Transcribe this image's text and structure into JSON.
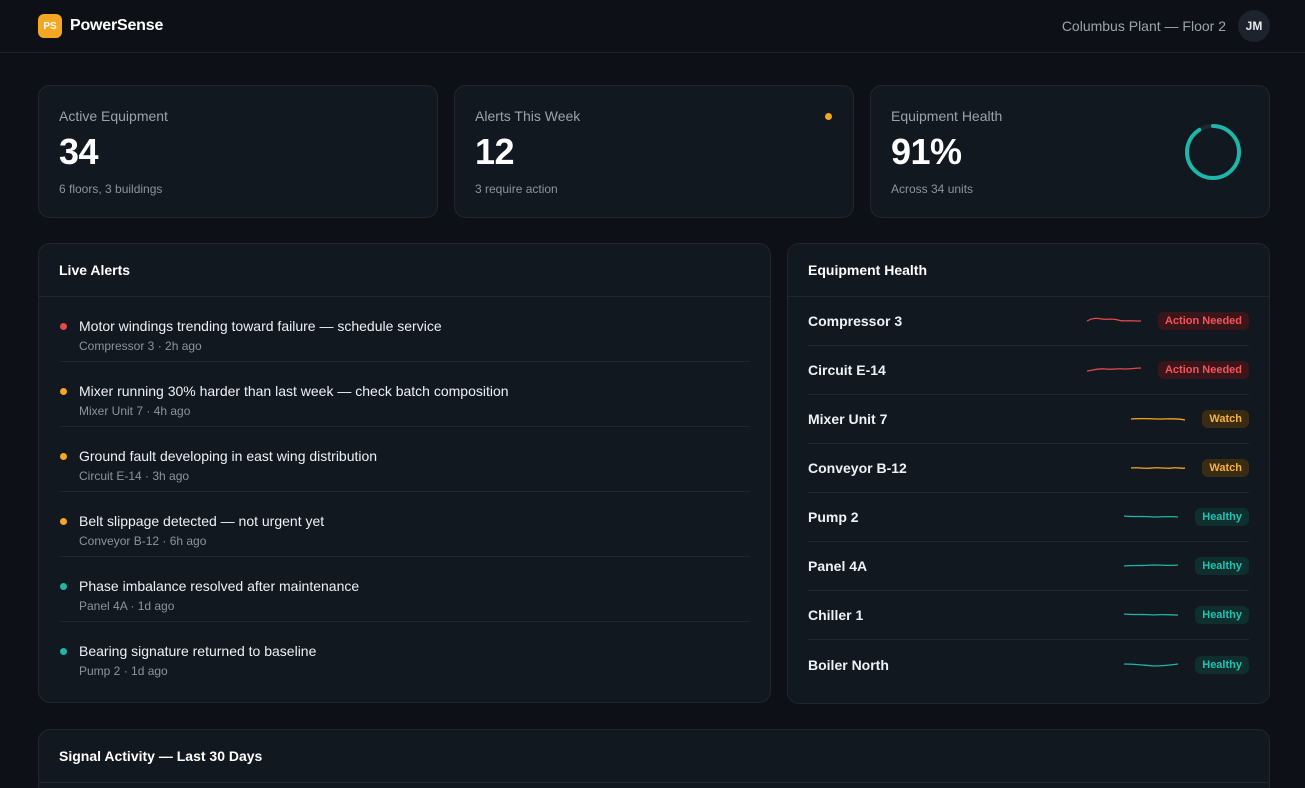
{
  "brand": {
    "logo_text": "PS",
    "name": "PowerSense"
  },
  "header": {
    "location": "Columbus Plant — Floor 2",
    "avatar_initials": "JM"
  },
  "kpis": [
    {
      "label": "Active Equipment",
      "value": "34",
      "sub": "6 floors, 3 buildings"
    },
    {
      "label": "Alerts This Week",
      "value": "12",
      "sub": "3 require action",
      "dot_color": "#f5a623"
    },
    {
      "label": "Equipment Health",
      "value": "91%",
      "sub": "Across 34 units",
      "ring_percent": 91,
      "ring_color": "#1fb5a8"
    }
  ],
  "alerts": {
    "title": "Live Alerts",
    "items": [
      {
        "title": "Motor windings trending toward failure — schedule service",
        "meta": "Compressor 3 · 2h ago",
        "severity": "critical",
        "color": "#e5484d"
      },
      {
        "title": "Mixer running 30% harder than last week — check batch composition",
        "meta": "Mixer Unit 7 · 4h ago",
        "severity": "warning",
        "color": "#f5a623"
      },
      {
        "title": "Ground fault developing in east wing distribution",
        "meta": "Circuit E-14 · 3h ago",
        "severity": "warning",
        "color": "#f5a623"
      },
      {
        "title": "Belt slippage detected — not urgent yet",
        "meta": "Conveyor B-12 · 6h ago",
        "severity": "warning",
        "color": "#f5a623"
      },
      {
        "title": "Phase imbalance resolved after maintenance",
        "meta": "Panel 4A · 1d ago",
        "severity": "resolved",
        "color": "#1fb5a8"
      },
      {
        "title": "Bearing signature returned to baseline",
        "meta": "Pump 2 · 1d ago",
        "severity": "resolved",
        "color": "#1fb5a8"
      }
    ]
  },
  "health": {
    "title": "Equipment Health",
    "items": [
      {
        "name": "Compressor 3",
        "status": "Action Needed",
        "level": "red",
        "spark_color": "#e5484d"
      },
      {
        "name": "Circuit E-14",
        "status": "Action Needed",
        "level": "red",
        "spark_color": "#e5484d"
      },
      {
        "name": "Mixer Unit 7",
        "status": "Watch",
        "level": "amber",
        "spark_color": "#f5a623"
      },
      {
        "name": "Conveyor B-12",
        "status": "Watch",
        "level": "amber",
        "spark_color": "#f5a623"
      },
      {
        "name": "Pump 2",
        "status": "Healthy",
        "level": "teal",
        "spark_color": "#1fb5a8"
      },
      {
        "name": "Panel 4A",
        "status": "Healthy",
        "level": "teal",
        "spark_color": "#1fb5a8"
      },
      {
        "name": "Chiller 1",
        "status": "Healthy",
        "level": "teal",
        "spark_color": "#1fb5a8"
      },
      {
        "name": "Boiler North",
        "status": "Healthy",
        "level": "teal",
        "spark_color": "#1fb5a8"
      }
    ]
  },
  "signal": {
    "title": "Signal Activity — Last 30 Days"
  }
}
